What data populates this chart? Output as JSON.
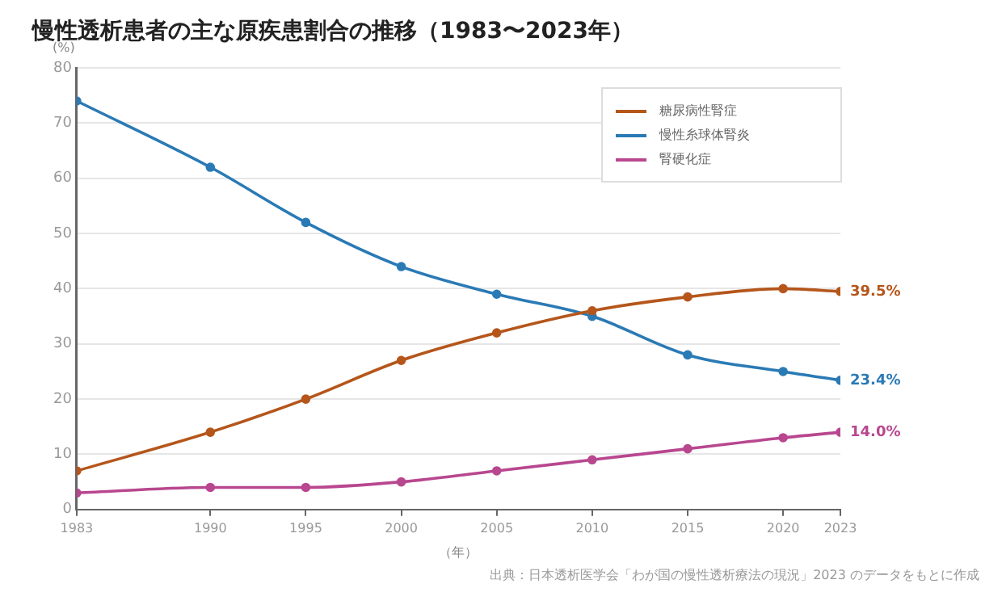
{
  "chart_data": {
    "type": "line",
    "title": "慢性透析患者の主な原疾患割合の推移（1983〜2023年）",
    "xlabel": "（年）",
    "ylabel": "(%)",
    "x": [
      1983,
      1990,
      1995,
      2000,
      2005,
      2010,
      2015,
      2020,
      2023
    ],
    "series": [
      {
        "name": "糖尿病性腎症",
        "color": "#b5561b",
        "values": [
          7,
          14,
          20,
          27,
          32,
          36,
          38.5,
          40,
          39.5
        ],
        "value_labels": [
          null,
          null,
          null,
          null,
          null,
          null,
          null,
          null,
          "39.5%"
        ]
      },
      {
        "name": "慢性糸球体腎炎",
        "color": "#2a7ab5",
        "values": [
          74,
          62,
          52,
          44,
          39,
          35,
          28,
          25,
          23.4
        ],
        "value_labels": [
          null,
          null,
          null,
          null,
          null,
          null,
          null,
          null,
          "23.4%"
        ]
      },
      {
        "name": "腎硬化症",
        "color": "#b8478f",
        "values": [
          3,
          4,
          4,
          5,
          7,
          9,
          11,
          13,
          14.0
        ],
        "value_labels": [
          null,
          null,
          null,
          null,
          null,
          null,
          null,
          null,
          "14.0%"
        ]
      }
    ],
    "xlim": [
      1983,
      2023
    ],
    "xticks": [
      1983,
      1990,
      1995,
      2000,
      2005,
      2010,
      2015,
      2020,
      2023
    ],
    "ylim": [
      0,
      80
    ],
    "yticks": [
      0,
      10,
      20,
      30,
      40,
      50,
      60,
      70,
      80
    ],
    "grid": "y",
    "legend": "top right",
    "marker": "circle",
    "line_style": "solid",
    "annotations": [
      "出典：日本透析医学会「わが国の慢性透析療法の現況」2023 のデータをもとに作成"
    ]
  }
}
